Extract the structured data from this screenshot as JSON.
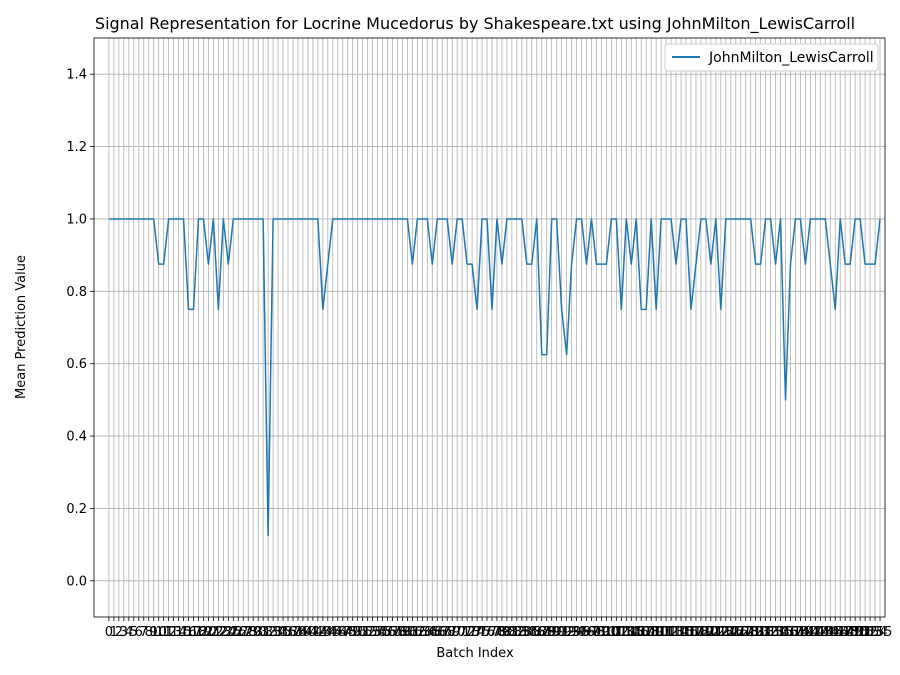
{
  "chart_data": {
    "type": "line",
    "title": "Signal Representation for Locrine Mucedorus by Shakespeare.txt using JohnMilton_LewisCarroll",
    "xlabel": "Batch Index",
    "ylabel": "Mean Prediction Value",
    "ylim": [
      -0.1,
      1.5
    ],
    "xlim": [
      -3,
      156
    ],
    "yticks": [
      0.0,
      0.2,
      0.4,
      0.6,
      0.8,
      1.0,
      1.2,
      1.4
    ],
    "ytick_labels": [
      "0.0",
      "0.2",
      "0.4",
      "0.6",
      "0.8",
      "1.0",
      "1.2",
      "1.4"
    ],
    "grid": true,
    "legend_position": "top-right",
    "series": [
      {
        "name": "JohnMilton_LewisCarroll",
        "color": "#1f77b4",
        "values": [
          1.0,
          1.0,
          1.0,
          1.0,
          1.0,
          1.0,
          1.0,
          1.0,
          1.0,
          1.0,
          0.875,
          0.875,
          1.0,
          1.0,
          1.0,
          1.0,
          0.75,
          0.75,
          1.0,
          1.0,
          0.875,
          1.0,
          0.75,
          1.0,
          0.875,
          1.0,
          1.0,
          1.0,
          1.0,
          1.0,
          1.0,
          1.0,
          0.125,
          1.0,
          1.0,
          1.0,
          1.0,
          1.0,
          1.0,
          1.0,
          1.0,
          1.0,
          1.0,
          0.75,
          0.875,
          1.0,
          1.0,
          1.0,
          1.0,
          1.0,
          1.0,
          1.0,
          1.0,
          1.0,
          1.0,
          1.0,
          1.0,
          1.0,
          1.0,
          1.0,
          1.0,
          0.875,
          1.0,
          1.0,
          1.0,
          0.875,
          1.0,
          1.0,
          1.0,
          0.875,
          1.0,
          1.0,
          0.875,
          0.875,
          0.75,
          1.0,
          1.0,
          0.75,
          1.0,
          0.875,
          1.0,
          1.0,
          1.0,
          1.0,
          0.875,
          0.875,
          1.0,
          0.625,
          0.625,
          1.0,
          1.0,
          0.75,
          0.625,
          0.875,
          1.0,
          1.0,
          0.875,
          1.0,
          0.875,
          0.875,
          0.875,
          1.0,
          1.0,
          0.75,
          1.0,
          0.875,
          1.0,
          0.75,
          0.75,
          1.0,
          0.75,
          1.0,
          1.0,
          1.0,
          0.875,
          1.0,
          1.0,
          0.75,
          0.875,
          1.0,
          1.0,
          0.875,
          1.0,
          0.75,
          1.0,
          1.0,
          1.0,
          1.0,
          1.0,
          1.0,
          0.875,
          0.875,
          1.0,
          1.0,
          0.875,
          1.0,
          0.5,
          0.875,
          1.0,
          1.0,
          0.875,
          1.0,
          1.0,
          1.0,
          1.0,
          0.875,
          0.75,
          1.0,
          0.875,
          0.875,
          1.0,
          1.0,
          0.875,
          0.875,
          0.875,
          1.0
        ]
      }
    ]
  }
}
